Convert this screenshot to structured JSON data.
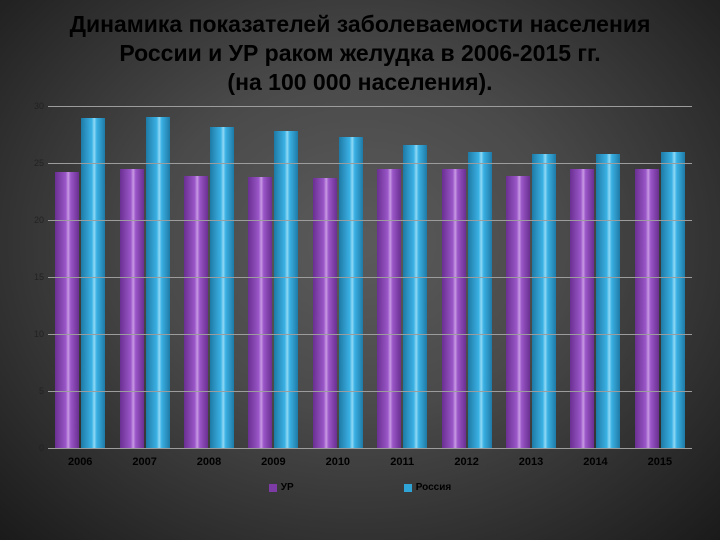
{
  "title_line1": "Динамика показателей заболеваемости населения",
  "title_line2": "России и УР  раком желудка в 2006-2015 гг.",
  "title_line3": "(на 100 000 населения).",
  "chart": {
    "type": "bar",
    "categories": [
      "2006",
      "2007",
      "2008",
      "2009",
      "2010",
      "2011",
      "2012",
      "2013",
      "2014",
      "2015"
    ],
    "series": [
      {
        "name": "УР",
        "color": "#7d3ba6",
        "values": [
          24.2,
          24.5,
          23.9,
          23.8,
          23.7,
          24.5,
          24.5,
          23.9,
          24.5,
          24.5
        ]
      },
      {
        "name": "Россия",
        "color": "#2fa4d6",
        "values": [
          29.0,
          29.1,
          28.2,
          27.8,
          27.3,
          26.6,
          26.0,
          25.8,
          25.8,
          26.0
        ]
      }
    ],
    "ylim": [
      0,
      30
    ],
    "ytick_step": 5,
    "grid_color": "#9c9c9c",
    "label_fontsize": 9,
    "xlabel_fontsize": 11,
    "legend_fontsize": 10,
    "title_fontsize": 23,
    "bar_highlight": {
      "ur": "linear-gradient(90deg,#6a2f91 0%,#9a57c8 45%,#c89ae4 55%,#9a57c8 65%,#6a2f91 100%)",
      "rus": "linear-gradient(90deg,#1e7aa6 0%,#3bb1e4 45%,#8fd9f4 55%,#3bb1e4 65%,#1e7aa6 100%)"
    }
  },
  "legend": {
    "ur": "УР",
    "russia": "Россия"
  }
}
